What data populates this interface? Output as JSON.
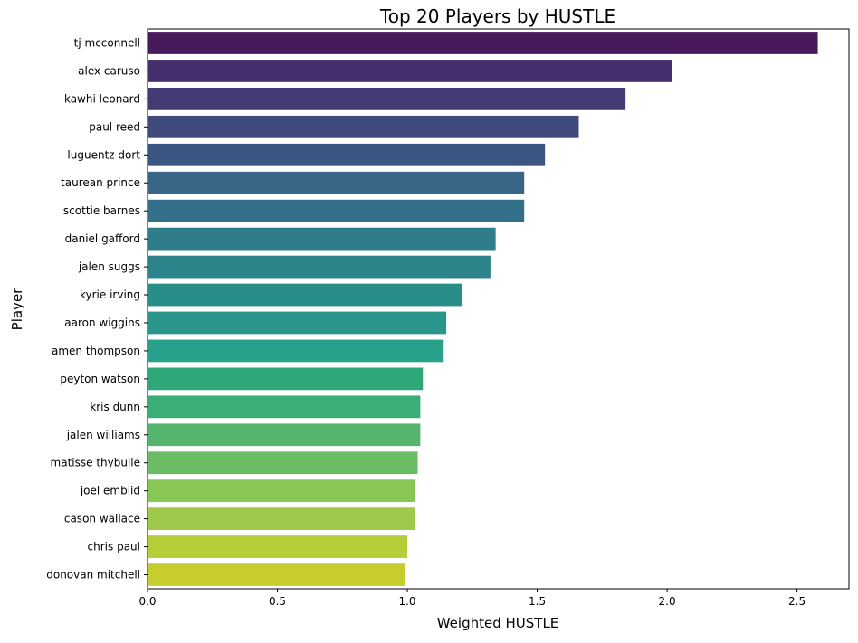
{
  "chart_data": {
    "type": "bar",
    "orientation": "horizontal",
    "title": "Top 20 Players by HUSTLE",
    "xlabel": "Weighted HUSTLE",
    "ylabel": "Player",
    "xlim": [
      0,
      2.7
    ],
    "xticks": [
      0.0,
      0.5,
      1.0,
      1.5,
      2.0,
      2.5
    ],
    "xtick_labels": [
      "0.0",
      "0.5",
      "1.0",
      "1.5",
      "2.0",
      "2.5"
    ],
    "grid": false,
    "legend": "none",
    "colormap": "viridis",
    "categories": [
      "tj mcconnell",
      "alex caruso",
      "kawhi leonard",
      "paul reed",
      "luguentz dort",
      "taurean prince",
      "scottie barnes",
      "daniel gafford",
      "jalen suggs",
      "kyrie irving",
      "aaron wiggins",
      "amen thompson",
      "peyton watson",
      "kris dunn",
      "jalen williams",
      "matisse thybulle",
      "joel embiid",
      "cason wallace",
      "chris paul",
      "donovan mitchell"
    ],
    "values": [
      2.58,
      2.02,
      1.84,
      1.66,
      1.53,
      1.45,
      1.45,
      1.34,
      1.32,
      1.21,
      1.15,
      1.14,
      1.06,
      1.05,
      1.05,
      1.04,
      1.03,
      1.03,
      1.0,
      0.99
    ],
    "colors": [
      "#481A5C",
      "#472F6E",
      "#453A74",
      "#414A7C",
      "#3C5683",
      "#396587",
      "#35708A",
      "#2F7D8A",
      "#2C848A",
      "#2A8E88",
      "#2A958A",
      "#28A08A",
      "#2EA878",
      "#3BAD76",
      "#55B46E",
      "#6CBC66",
      "#88C656",
      "#A0C84A",
      "#B6CD3A",
      "#C6CD2F"
    ]
  }
}
